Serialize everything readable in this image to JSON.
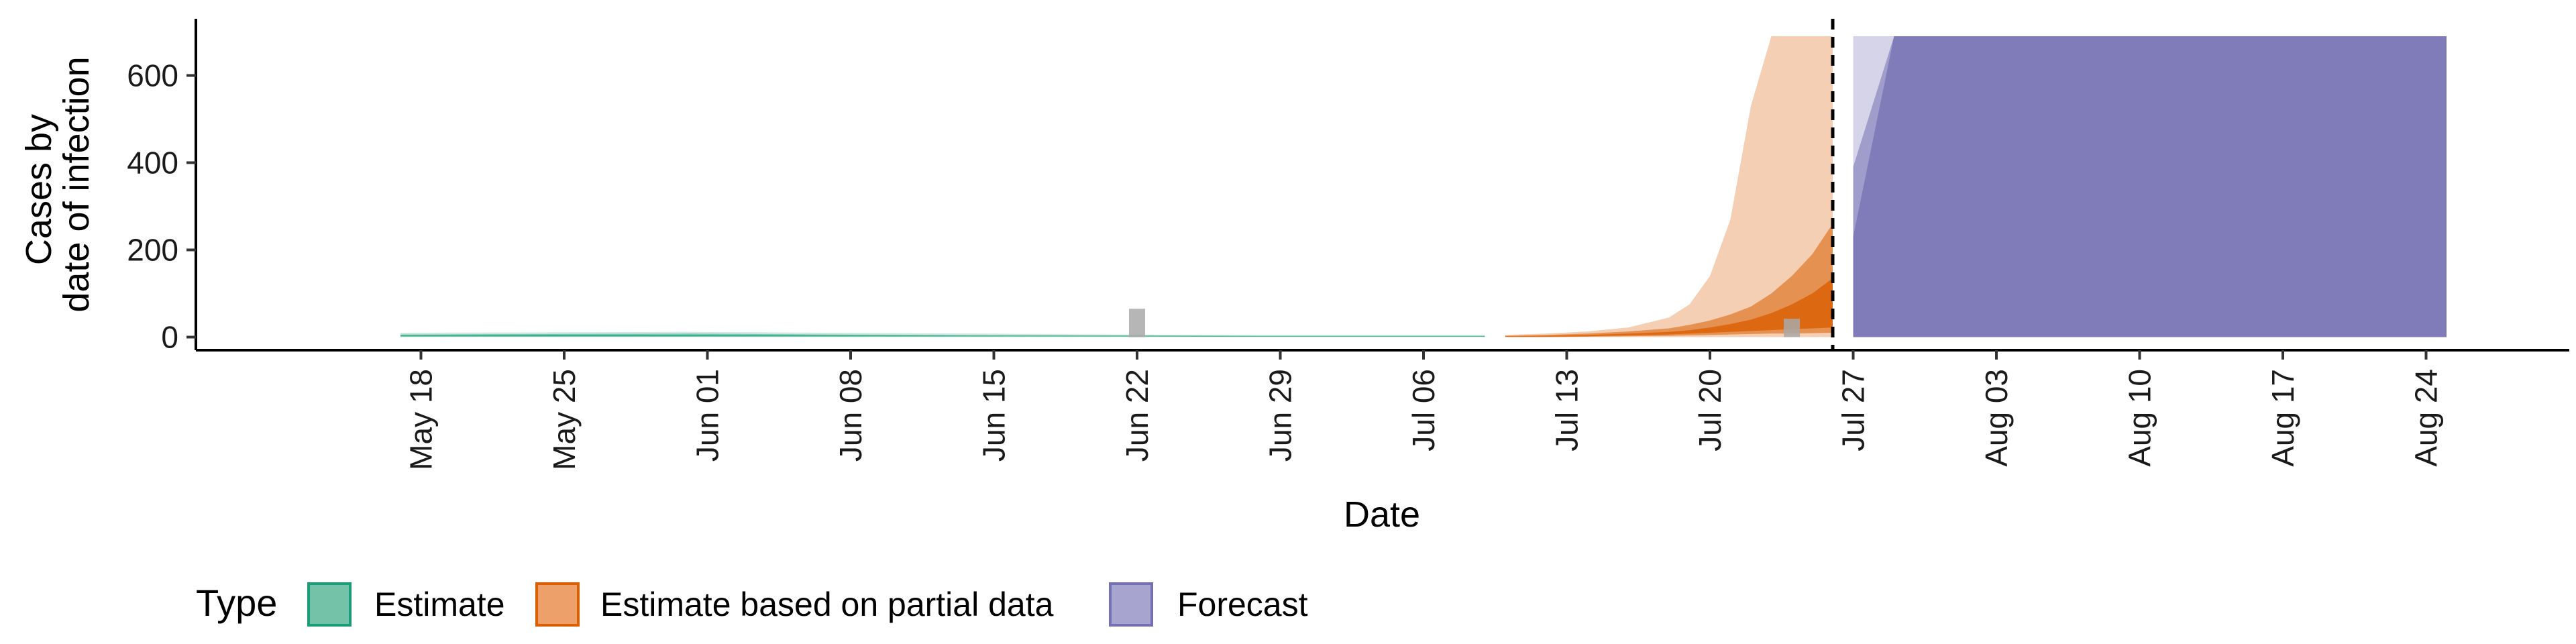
{
  "chart_data": {
    "type": "area",
    "xlabel": "Date",
    "ylabel": [
      "Cases by",
      "date of infection"
    ],
    "ylim": [
      -30,
      730
    ],
    "yticks": [
      0,
      200,
      400,
      600
    ],
    "x_tick_labels": [
      "May 18",
      "May 25",
      "Jun 01",
      "Jun 08",
      "Jun 15",
      "Jun 22",
      "Jun 29",
      "Jul 06",
      "Jul 13",
      "Jul 20",
      "Jul 27",
      "Aug 03",
      "Aug 10",
      "Aug 17",
      "Aug 24"
    ],
    "x_tick_dates": [
      "2020-05-18",
      "2020-05-25",
      "2020-06-01",
      "2020-06-08",
      "2020-06-15",
      "2020-06-22",
      "2020-06-29",
      "2020-07-06",
      "2020-07-13",
      "2020-07-20",
      "2020-07-27",
      "2020-08-03",
      "2020-08-10",
      "2020-08-17",
      "2020-08-24"
    ],
    "xlim": [
      "2020-05-07",
      "2020-08-31"
    ],
    "forecast_start": "2020-07-26",
    "grid": false,
    "legend": {
      "title": "Type",
      "placement": "bottom-left",
      "entries": [
        {
          "label": "Estimate",
          "fill": "#74c2a8",
          "stroke": "#1b9e77"
        },
        {
          "label": "Estimate based on partial data",
          "fill": "#eda06a",
          "stroke": "#d95f02"
        },
        {
          "label": "Forecast",
          "fill": "#a7a5d0",
          "stroke": "#7570b3"
        }
      ]
    },
    "colors": {
      "estimate": "#1b9e77",
      "partial": "#d95f02",
      "forecast": "#7570b3",
      "reported": "#a9a9a9"
    },
    "series": [
      {
        "type": "estimate",
        "dates": [
          "2020-05-17",
          "2020-05-24",
          "2020-05-31",
          "2020-06-07",
          "2020-06-14",
          "2020-06-21",
          "2020-06-28",
          "2020-07-05",
          "2020-07-09"
        ],
        "bands": [
          {
            "opacity": 0.22,
            "lower": [
              0,
              0,
              0,
              0,
              0,
              0,
              0,
              0,
              0
            ],
            "upper": [
              10,
              11,
              12,
              10,
              8,
              6,
              5,
              5,
              5
            ]
          },
          {
            "opacity": 0.45,
            "lower": [
              1,
              1,
              1,
              1,
              1,
              1,
              1,
              1,
              1
            ],
            "upper": [
              6,
              7,
              8,
              6,
              5,
              4,
              3,
              3,
              3
            ]
          },
          {
            "opacity": 0.7,
            "lower": [
              2,
              2,
              2,
              2,
              2,
              2,
              1,
              1,
              1
            ],
            "upper": [
              4,
              5,
              5,
              4,
              3,
              3,
              2,
              2,
              2
            ]
          }
        ]
      },
      {
        "type": "partial",
        "dates": [
          "2020-07-10",
          "2020-07-12",
          "2020-07-14",
          "2020-07-16",
          "2020-07-18",
          "2020-07-19",
          "2020-07-20",
          "2020-07-21",
          "2020-07-22",
          "2020-07-23",
          "2020-07-24",
          "2020-07-25",
          "2020-07-26"
        ],
        "bands": [
          {
            "opacity": 0.3,
            "lower": [
              0,
              0,
              0,
              0,
              0,
              0,
              0,
              0,
              0,
              0,
              0,
              0,
              0
            ],
            "upper": [
              5,
              8,
              13,
              22,
              45,
              75,
              140,
              270,
              530,
              690,
              690,
              690,
              690
            ]
          },
          {
            "opacity": 0.55,
            "lower": [
              0,
              0,
              1,
              2,
              3,
              4,
              5,
              6,
              7,
              8,
              8,
              9,
              10
            ],
            "upper": [
              3,
              5,
              8,
              13,
              20,
              28,
              38,
              52,
              70,
              100,
              140,
              190,
              260
            ]
          },
          {
            "opacity": 0.8,
            "lower": [
              1,
              1,
              2,
              4,
              6,
              8,
              10,
              12,
              14,
              16,
              18,
              20,
              22
            ],
            "upper": [
              2,
              3,
              5,
              8,
              12,
              16,
              22,
              30,
              40,
              55,
              75,
              100,
              135
            ]
          }
        ]
      },
      {
        "type": "forecast",
        "dates": [
          "2020-07-27",
          "2020-07-29",
          "2020-08-25"
        ],
        "bands": [
          {
            "opacity": 0.3,
            "lower": [
              0,
              0,
              0
            ],
            "upper": [
              690,
              690,
              690
            ]
          },
          {
            "opacity": 0.55,
            "lower": [
              0,
              0,
              0
            ],
            "upper": [
              390,
              690,
              690
            ]
          },
          {
            "opacity": 0.75,
            "lower": [
              0,
              0,
              0
            ],
            "upper": [
              230,
              690,
              690
            ]
          }
        ]
      }
    ],
    "reported_cases": [
      {
        "date": "2020-06-22",
        "value": 65
      },
      {
        "date": "2020-07-24",
        "value": 42
      }
    ]
  }
}
